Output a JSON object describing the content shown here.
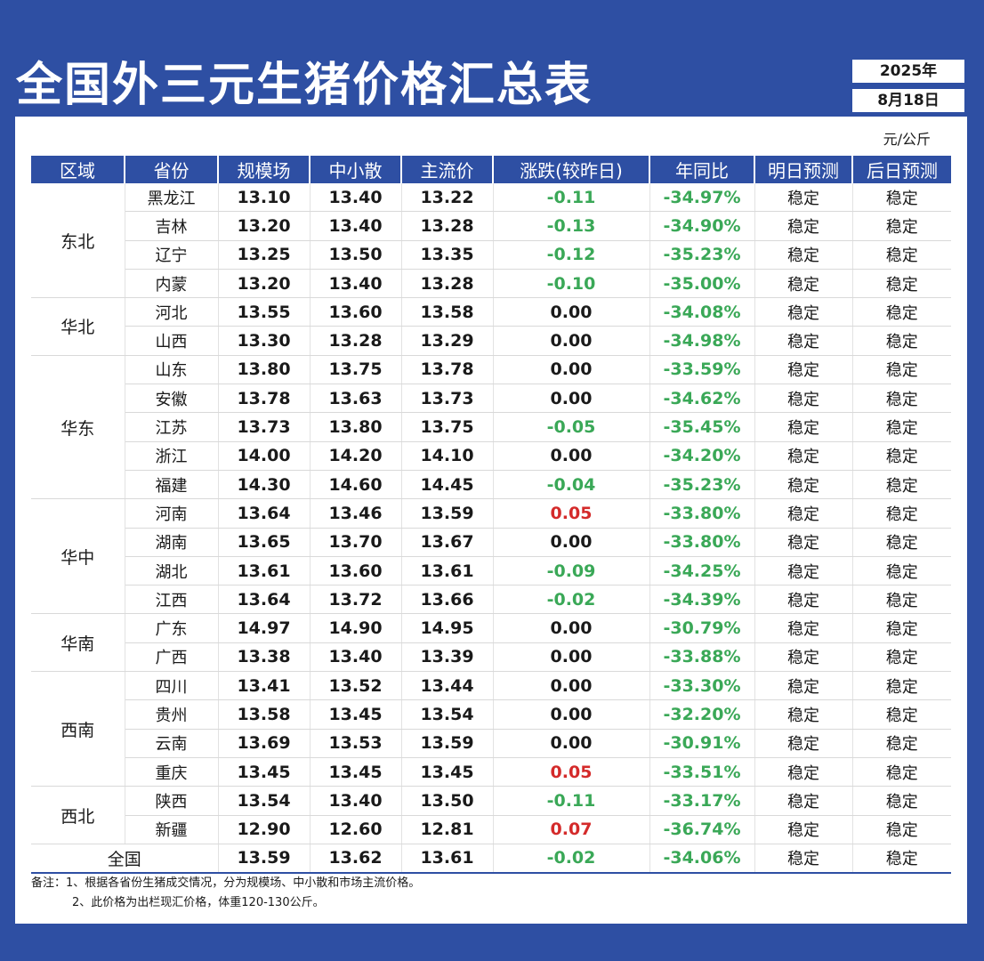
{
  "title": "全国外三元生猪价格汇总表",
  "date": {
    "year": "2025年",
    "day": "8月18日"
  },
  "unit": "元/公斤",
  "columns": [
    "区域",
    "省份",
    "规模场",
    "中小散",
    "主流价",
    "涨跌(较昨日)",
    "年同比",
    "明日预测",
    "后日预测"
  ],
  "colors": {
    "header_bg": "#2e4fa3",
    "up": "#d42a2a",
    "down": "#3aa857",
    "flat": "#1a1a1a"
  },
  "regions": [
    {
      "name": "东北",
      "rows": [
        {
          "province": "黑龙江",
          "scale": "13.10",
          "small": "13.40",
          "main": "13.22",
          "change": "-0.11",
          "trend": "down",
          "yoy": "-34.97%",
          "tomorrow": "稳定",
          "after": "稳定"
        },
        {
          "province": "吉林",
          "scale": "13.20",
          "small": "13.40",
          "main": "13.28",
          "change": "-0.13",
          "trend": "down",
          "yoy": "-34.90%",
          "tomorrow": "稳定",
          "after": "稳定"
        },
        {
          "province": "辽宁",
          "scale": "13.25",
          "small": "13.50",
          "main": "13.35",
          "change": "-0.12",
          "trend": "down",
          "yoy": "-35.23%",
          "tomorrow": "稳定",
          "after": "稳定"
        },
        {
          "province": "内蒙",
          "scale": "13.20",
          "small": "13.40",
          "main": "13.28",
          "change": "-0.10",
          "trend": "down",
          "yoy": "-35.00%",
          "tomorrow": "稳定",
          "after": "稳定"
        }
      ]
    },
    {
      "name": "华北",
      "rows": [
        {
          "province": "河北",
          "scale": "13.55",
          "small": "13.60",
          "main": "13.58",
          "change": "0.00",
          "trend": "flat",
          "yoy": "-34.08%",
          "tomorrow": "稳定",
          "after": "稳定"
        },
        {
          "province": "山西",
          "scale": "13.30",
          "small": "13.28",
          "main": "13.29",
          "change": "0.00",
          "trend": "flat",
          "yoy": "-34.98%",
          "tomorrow": "稳定",
          "after": "稳定"
        }
      ]
    },
    {
      "name": "华东",
      "rows": [
        {
          "province": "山东",
          "scale": "13.80",
          "small": "13.75",
          "main": "13.78",
          "change": "0.00",
          "trend": "flat",
          "yoy": "-33.59%",
          "tomorrow": "稳定",
          "after": "稳定"
        },
        {
          "province": "安徽",
          "scale": "13.78",
          "small": "13.63",
          "main": "13.73",
          "change": "0.00",
          "trend": "flat",
          "yoy": "-34.62%",
          "tomorrow": "稳定",
          "after": "稳定"
        },
        {
          "province": "江苏",
          "scale": "13.73",
          "small": "13.80",
          "main": "13.75",
          "change": "-0.05",
          "trend": "down",
          "yoy": "-35.45%",
          "tomorrow": "稳定",
          "after": "稳定"
        },
        {
          "province": "浙江",
          "scale": "14.00",
          "small": "14.20",
          "main": "14.10",
          "change": "0.00",
          "trend": "flat",
          "yoy": "-34.20%",
          "tomorrow": "稳定",
          "after": "稳定"
        },
        {
          "province": "福建",
          "scale": "14.30",
          "small": "14.60",
          "main": "14.45",
          "change": "-0.04",
          "trend": "down",
          "yoy": "-35.23%",
          "tomorrow": "稳定",
          "after": "稳定"
        }
      ]
    },
    {
      "name": "华中",
      "rows": [
        {
          "province": "河南",
          "scale": "13.64",
          "small": "13.46",
          "main": "13.59",
          "change": "0.05",
          "trend": "up",
          "yoy": "-33.80%",
          "tomorrow": "稳定",
          "after": "稳定"
        },
        {
          "province": "湖南",
          "scale": "13.65",
          "small": "13.70",
          "main": "13.67",
          "change": "0.00",
          "trend": "flat",
          "yoy": "-33.80%",
          "tomorrow": "稳定",
          "after": "稳定"
        },
        {
          "province": "湖北",
          "scale": "13.61",
          "small": "13.60",
          "main": "13.61",
          "change": "-0.09",
          "trend": "down",
          "yoy": "-34.25%",
          "tomorrow": "稳定",
          "after": "稳定"
        },
        {
          "province": "江西",
          "scale": "13.64",
          "small": "13.72",
          "main": "13.66",
          "change": "-0.02",
          "trend": "down",
          "yoy": "-34.39%",
          "tomorrow": "稳定",
          "after": "稳定"
        }
      ]
    },
    {
      "name": "华南",
      "rows": [
        {
          "province": "广东",
          "scale": "14.97",
          "small": "14.90",
          "main": "14.95",
          "change": "0.00",
          "trend": "flat",
          "yoy": "-30.79%",
          "tomorrow": "稳定",
          "after": "稳定"
        },
        {
          "province": "广西",
          "scale": "13.38",
          "small": "13.40",
          "main": "13.39",
          "change": "0.00",
          "trend": "flat",
          "yoy": "-33.88%",
          "tomorrow": "稳定",
          "after": "稳定"
        }
      ]
    },
    {
      "name": "西南",
      "rows": [
        {
          "province": "四川",
          "scale": "13.41",
          "small": "13.52",
          "main": "13.44",
          "change": "0.00",
          "trend": "flat",
          "yoy": "-33.30%",
          "tomorrow": "稳定",
          "after": "稳定"
        },
        {
          "province": "贵州",
          "scale": "13.58",
          "small": "13.45",
          "main": "13.54",
          "change": "0.00",
          "trend": "flat",
          "yoy": "-32.20%",
          "tomorrow": "稳定",
          "after": "稳定"
        },
        {
          "province": "云南",
          "scale": "13.69",
          "small": "13.53",
          "main": "13.59",
          "change": "0.00",
          "trend": "flat",
          "yoy": "-30.91%",
          "tomorrow": "稳定",
          "after": "稳定"
        },
        {
          "province": "重庆",
          "scale": "13.45",
          "small": "13.45",
          "main": "13.45",
          "change": "0.05",
          "trend": "up",
          "yoy": "-33.51%",
          "tomorrow": "稳定",
          "after": "稳定"
        }
      ]
    },
    {
      "name": "西北",
      "rows": [
        {
          "province": "陕西",
          "scale": "13.54",
          "small": "13.40",
          "main": "13.50",
          "change": "-0.11",
          "trend": "down",
          "yoy": "-33.17%",
          "tomorrow": "稳定",
          "after": "稳定"
        },
        {
          "province": "新疆",
          "scale": "12.90",
          "small": "12.60",
          "main": "12.81",
          "change": "0.07",
          "trend": "up",
          "yoy": "-36.74%",
          "tomorrow": "稳定",
          "after": "稳定"
        }
      ]
    }
  ],
  "national": {
    "label": "全国",
    "scale": "13.59",
    "small": "13.62",
    "main": "13.61",
    "change": "-0.02",
    "trend": "down",
    "yoy": "-34.06%",
    "tomorrow": "稳定",
    "after": "稳定"
  },
  "notes": [
    "备注：1、根据各省份生猪成交情况，分为规模场、中小散和市场主流价格。",
    "2、此价格为出栏现汇价格，体重120-130公斤。"
  ]
}
